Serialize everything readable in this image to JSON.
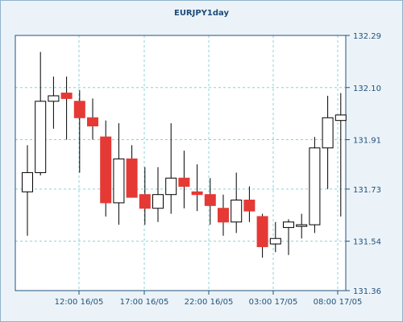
{
  "chart_data": {
    "type": "candlestick",
    "title": "EURJPY1day",
    "xlabel": "",
    "ylabel": "",
    "ylim": [
      131.36,
      132.29
    ],
    "y_ticks": [
      "132.29",
      "132.10",
      "131.91",
      "131.73",
      "131.54",
      "131.36"
    ],
    "x_ticks": [
      "12:00 16/05",
      "17:00 16/05",
      "22:00 16/05",
      "03:00 17/05",
      "08:00 17/05"
    ],
    "grid": true,
    "colors": {
      "bull_fill": "#ffffff",
      "bear_fill": "#e53935",
      "outline": "#000000",
      "grid": "#8ed0d6",
      "axis_text": "#23527c",
      "title": "#1e4a78",
      "background": "#ebf3f8",
      "plot_background": "#ffffff"
    },
    "candles": [
      {
        "open": 131.72,
        "high": 131.89,
        "low": 131.56,
        "close": 131.79
      },
      {
        "open": 131.79,
        "high": 132.23,
        "low": 131.78,
        "close": 132.05
      },
      {
        "open": 132.05,
        "high": 132.14,
        "low": 131.95,
        "close": 132.07
      },
      {
        "open": 132.08,
        "high": 132.14,
        "low": 131.91,
        "close": 132.06
      },
      {
        "open": 132.05,
        "high": 132.09,
        "low": 131.79,
        "close": 131.99
      },
      {
        "open": 131.99,
        "high": 132.06,
        "low": 131.91,
        "close": 131.96
      },
      {
        "open": 131.92,
        "high": 131.98,
        "low": 131.63,
        "close": 131.68
      },
      {
        "open": 131.68,
        "high": 131.97,
        "low": 131.6,
        "close": 131.84
      },
      {
        "open": 131.84,
        "high": 131.89,
        "low": 131.7,
        "close": 131.7
      },
      {
        "open": 131.71,
        "high": 131.81,
        "low": 131.6,
        "close": 131.66
      },
      {
        "open": 131.66,
        "high": 131.81,
        "low": 131.61,
        "close": 131.71
      },
      {
        "open": 131.71,
        "high": 131.97,
        "low": 131.64,
        "close": 131.77
      },
      {
        "open": 131.77,
        "high": 131.87,
        "low": 131.66,
        "close": 131.74
      },
      {
        "open": 131.72,
        "high": 131.82,
        "low": 131.65,
        "close": 131.71
      },
      {
        "open": 131.71,
        "high": 131.77,
        "low": 131.6,
        "close": 131.67
      },
      {
        "open": 131.66,
        "high": 131.71,
        "low": 131.56,
        "close": 131.61
      },
      {
        "open": 131.61,
        "high": 131.79,
        "low": 131.57,
        "close": 131.69
      },
      {
        "open": 131.69,
        "high": 131.74,
        "low": 131.61,
        "close": 131.65
      },
      {
        "open": 131.63,
        "high": 131.64,
        "low": 131.48,
        "close": 131.52
      },
      {
        "open": 131.53,
        "high": 131.61,
        "low": 131.5,
        "close": 131.55
      },
      {
        "open": 131.59,
        "high": 131.62,
        "low": 131.49,
        "close": 131.61
      },
      {
        "open": 131.6,
        "high": 131.64,
        "low": 131.55,
        "close": 131.6
      },
      {
        "open": 131.6,
        "high": 131.92,
        "low": 131.57,
        "close": 131.88
      },
      {
        "open": 131.88,
        "high": 132.07,
        "low": 131.73,
        "close": 131.99
      },
      {
        "open": 131.98,
        "high": 132.08,
        "low": 131.63,
        "close": 132.0
      }
    ]
  }
}
